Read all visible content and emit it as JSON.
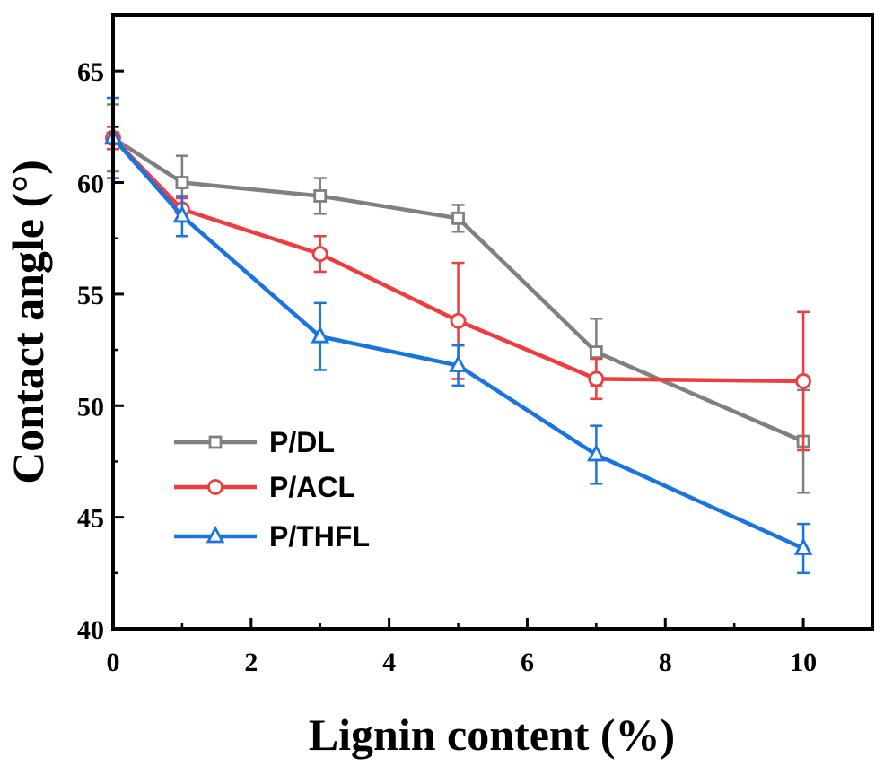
{
  "chart_data": {
    "type": "line",
    "title": "",
    "xlabel": "Lignin content (%)",
    "ylabel": "Contact angle (°)",
    "xlim": [
      0,
      11
    ],
    "ylim": [
      40,
      67.5
    ],
    "xticks": [
      0,
      2,
      4,
      6,
      8,
      10
    ],
    "xtick_labels": [
      "0",
      "2",
      "4",
      "6",
      "8",
      "10"
    ],
    "yticks": [
      40,
      45,
      50,
      55,
      60,
      65
    ],
    "ytick_labels": [
      "40",
      "45",
      "50",
      "55",
      "60",
      "65"
    ],
    "grid": false,
    "legend_position": "lower-left",
    "x": [
      0,
      1,
      3,
      5,
      7,
      10
    ],
    "series": [
      {
        "name": "P/DL",
        "color": "#808080",
        "marker": "square",
        "values": [
          62.0,
          60.0,
          59.4,
          58.4,
          52.4,
          48.4
        ],
        "errors": [
          1.5,
          1.2,
          0.8,
          0.6,
          1.5,
          2.3
        ]
      },
      {
        "name": "P/ACL",
        "color": "#f03c3c",
        "marker": "circle",
        "values": [
          62.0,
          58.8,
          56.8,
          53.8,
          51.2,
          51.1
        ],
        "errors": [
          0.5,
          0.5,
          0.8,
          2.6,
          0.9,
          3.1
        ]
      },
      {
        "name": "P/THFL",
        "color": "#1874e0",
        "marker": "triangle",
        "values": [
          62.0,
          58.5,
          53.1,
          51.8,
          47.8,
          43.6
        ],
        "errors": [
          1.8,
          0.9,
          1.5,
          0.9,
          1.3,
          1.1
        ]
      }
    ]
  }
}
